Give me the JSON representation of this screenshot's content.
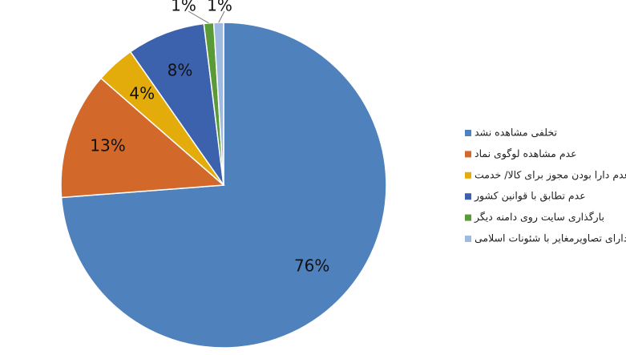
{
  "chart_data": {
    "type": "pie",
    "categories": [
      "تخلفی مشاهده نشد",
      "عدم مشاهده لوگوی نماد",
      "عدم دارا بودن مجوز برای کالا/ خدمت",
      "عدم تطابق با قوانین کشور",
      "بارگذاری سایت روی دامنه دیگر",
      "دارای تصاویرمغایر با شئونات اسلامی"
    ],
    "values": [
      76,
      13,
      4,
      8,
      1,
      1
    ],
    "value_labels": [
      "76%",
      "13%",
      "4%",
      "8%",
      "1%",
      "1%"
    ],
    "colors": [
      "#4f81bd",
      "#d2692a",
      "#e3ac0a",
      "#3c62ad",
      "#5a9a37",
      "#9ebae0"
    ],
    "legend": "right"
  }
}
